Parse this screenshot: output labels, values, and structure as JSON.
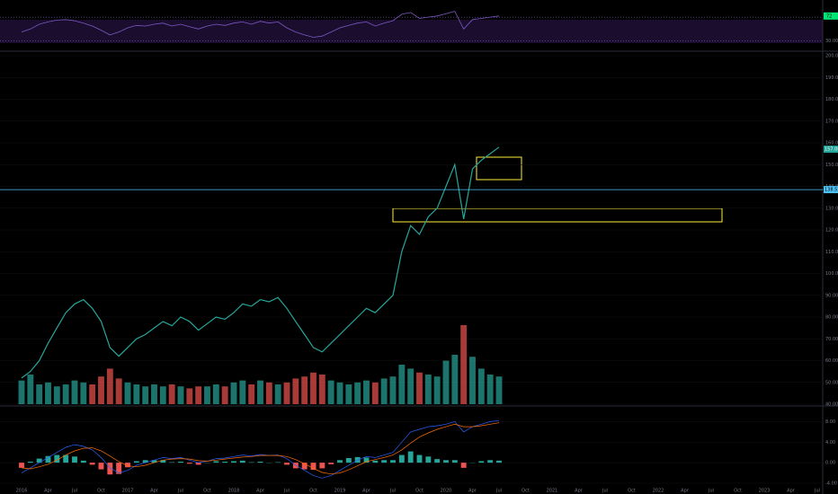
{
  "chart_data": [
    {
      "type": "line",
      "categories": [
        "2016",
        null,
        null,
        "Apr",
        null,
        null,
        "Jul",
        null,
        null,
        "Oct",
        null,
        null,
        "2017",
        null,
        null,
        "Apr",
        null,
        null,
        "Jul",
        null,
        null,
        "Oct",
        null,
        null,
        "2018",
        null,
        null,
        "Apr",
        null,
        null,
        "Jul",
        null,
        null,
        "Oct",
        null,
        null,
        "2019",
        null,
        null,
        "Apr",
        null,
        null,
        "Jul",
        null,
        null,
        "Oct",
        null,
        null,
        "2020",
        null,
        null,
        "Apr",
        null,
        null,
        "Jul",
        null,
        null,
        "Oct",
        null,
        null,
        "2021",
        null,
        null,
        "Apr",
        null,
        null,
        "Jul",
        null,
        null,
        "Oct",
        null,
        null,
        "2022",
        null,
        null,
        "Apr",
        null,
        null,
        "Jul",
        null,
        null,
        "Oct",
        null,
        null,
        "2023",
        null,
        null,
        "Apr",
        null,
        null,
        "Jul"
      ],
      "values": [
        52,
        55,
        60,
        68,
        75,
        82,
        86,
        88,
        84,
        78,
        66,
        62,
        66,
        70,
        72,
        75,
        78,
        76,
        80,
        78,
        74,
        77,
        80,
        79,
        82,
        86,
        85,
        88,
        87,
        89,
        84,
        78,
        72,
        66,
        64,
        68,
        72,
        76,
        80,
        84,
        82,
        86,
        90,
        110,
        122,
        118,
        126,
        130,
        140,
        150,
        125,
        148,
        152,
        155,
        158,
        null,
        null,
        null,
        null,
        null,
        null,
        null,
        null,
        null,
        null,
        null,
        null,
        null,
        null,
        null,
        null,
        null,
        null,
        null,
        null,
        null,
        null,
        null,
        null,
        null,
        null,
        null,
        null,
        null,
        null,
        null,
        null,
        null,
        null,
        null,
        null
      ],
      "color": "#26a69a",
      "up_color": "#26a69a",
      "down_color": "#ef5350",
      "ylim": [
        40,
        200
      ],
      "yticks": [
        {
          "value": 40,
          "label": "40.00"
        },
        {
          "value": 50,
          "label": "50.00"
        },
        {
          "value": 60,
          "label": "60.00"
        },
        {
          "value": 70,
          "label": "70.00"
        },
        {
          "value": 80,
          "label": "80.00"
        },
        {
          "value": 90,
          "label": "90.00"
        },
        {
          "value": 100,
          "label": "100.00"
        },
        {
          "value": 110,
          "label": "110.00"
        },
        {
          "value": 120,
          "label": "120.00"
        },
        {
          "value": 130,
          "label": "130.00"
        },
        {
          "value": 140,
          "label": "140.00"
        },
        {
          "value": 150,
          "label": "150.00"
        },
        {
          "value": 160,
          "label": "160.00"
        },
        {
          "value": 170,
          "label": "170.00"
        },
        {
          "value": 180,
          "label": "180.00"
        },
        {
          "value": 190,
          "label": "190.00"
        },
        {
          "value": 200,
          "label": "200.00"
        }
      ],
      "last_price": 157.06,
      "level": 138.52
    },
    {
      "type": "bar",
      "values": [
        12,
        15,
        10,
        11,
        9,
        10,
        12,
        11,
        10,
        14,
        18,
        13,
        11,
        10,
        9,
        10,
        9,
        10,
        9,
        8,
        9,
        9,
        10,
        9,
        11,
        12,
        10,
        12,
        11,
        10,
        11,
        13,
        14,
        16,
        15,
        12,
        11,
        10,
        11,
        12,
        11,
        13,
        14,
        20,
        18,
        16,
        15,
        14,
        22,
        25,
        40,
        24,
        18,
        15,
        14,
        null,
        null,
        null,
        null,
        null,
        null,
        null,
        null,
        null,
        null,
        null,
        null,
        null,
        null,
        null,
        null,
        null,
        null,
        null,
        null,
        null,
        null,
        null,
        null,
        null,
        null,
        null,
        null,
        null,
        null,
        null,
        null,
        null,
        null,
        null,
        null
      ]
    },
    {
      "type": "line",
      "values": [
        45,
        50,
        58,
        62,
        65,
        66,
        64,
        60,
        55,
        48,
        40,
        45,
        52,
        56,
        55,
        58,
        60,
        55,
        58,
        54,
        50,
        55,
        58,
        56,
        60,
        62,
        58,
        63,
        60,
        62,
        52,
        45,
        40,
        36,
        38,
        45,
        52,
        56,
        60,
        62,
        55,
        60,
        64,
        75,
        78,
        68,
        70,
        72,
        76,
        80,
        50,
        66,
        68,
        70,
        72,
        null,
        null,
        null,
        null,
        null,
        null,
        null,
        null,
        null,
        null,
        null,
        null,
        null,
        null,
        null,
        null,
        null,
        null,
        null,
        null,
        null,
        null,
        null,
        null,
        null,
        null,
        null,
        null,
        null,
        null,
        null,
        null,
        null,
        null,
        null,
        null
      ],
      "color": "#7e57c2",
      "ylim": [
        20,
        90
      ],
      "yticks": [
        {
          "value": 30,
          "label": "30.00"
        },
        {
          "value": 70,
          "label": "70.00"
        }
      ]
    },
    {
      "type": "macd",
      "macd": [
        -2,
        -1,
        0,
        1,
        2,
        3,
        3.5,
        3.2,
        2.5,
        1,
        -1,
        -2,
        -1.5,
        -0.5,
        0,
        0.5,
        1,
        0.8,
        1,
        0.5,
        0,
        0.3,
        0.8,
        0.9,
        1.2,
        1.5,
        1.3,
        1.6,
        1.4,
        1.5,
        0.8,
        -0.5,
        -1.5,
        -2.5,
        -3,
        -2.5,
        -1.5,
        -0.5,
        0.5,
        1.2,
        1,
        1.5,
        2,
        4,
        6,
        6.5,
        7,
        7.2,
        7.5,
        8,
        6,
        7,
        7.5,
        8,
        8.2,
        null,
        null,
        null,
        null,
        null,
        null,
        null,
        null,
        null,
        null,
        null,
        null,
        null,
        null,
        null,
        null,
        null,
        null,
        null,
        null,
        null,
        null,
        null,
        null,
        null,
        null,
        null,
        null,
        null,
        null,
        null,
        null,
        null,
        null,
        null,
        null
      ],
      "signal": [
        -1,
        -1.2,
        -0.8,
        -0.3,
        0.5,
        1.5,
        2.3,
        2.8,
        2.9,
        2.3,
        1.3,
        0.2,
        -0.6,
        -0.8,
        -0.5,
        0,
        0.5,
        0.7,
        0.8,
        0.7,
        0.4,
        0.3,
        0.5,
        0.7,
        0.9,
        1.1,
        1.2,
        1.4,
        1.4,
        1.4,
        1.2,
        0.6,
        -0.2,
        -1.1,
        -1.9,
        -2.2,
        -2,
        -1.4,
        -0.6,
        0.2,
        0.6,
        1,
        1.5,
        2.5,
        3.8,
        5,
        5.8,
        6.5,
        7,
        7.5,
        7,
        7,
        7.2,
        7.5,
        7.8,
        null,
        null,
        null,
        null,
        null,
        null,
        null,
        null,
        null,
        null,
        null,
        null,
        null,
        null,
        null,
        null,
        null,
        null,
        null,
        null,
        null,
        null,
        null,
        null,
        null,
        null,
        null,
        null,
        null,
        null,
        null,
        null,
        null,
        null,
        null,
        null
      ],
      "histogram": [
        -1,
        0.2,
        0.8,
        1.3,
        1.5,
        1.5,
        1.2,
        0.4,
        -0.4,
        -1.3,
        -2.3,
        -2.2,
        -0.9,
        0.3,
        0.5,
        0.5,
        0.5,
        0.1,
        0.2,
        -0.2,
        -0.4,
        0,
        0.3,
        0.2,
        0.3,
        0.4,
        0.1,
        0.2,
        0,
        0.1,
        -0.4,
        -1.1,
        -1.3,
        -1.4,
        -1.1,
        -0.3,
        0.5,
        0.9,
        1.1,
        1,
        0.4,
        0.5,
        0.5,
        1.5,
        2.2,
        1.5,
        1.2,
        0.7,
        0.5,
        0.5,
        -1,
        0,
        0.3,
        0.5,
        0.4,
        null,
        null,
        null,
        null,
        null,
        null,
        null,
        null,
        null,
        null,
        null,
        null,
        null,
        null,
        null,
        null,
        null,
        null,
        null,
        null,
        null,
        null,
        null,
        null,
        null,
        null,
        null,
        null,
        null,
        null,
        null,
        null,
        null,
        null,
        null,
        null
      ],
      "macd_color": "#2962ff",
      "signal_color": "#ff6d00",
      "ylim": [
        -4,
        10
      ],
      "yticks": [
        {
          "value": -4,
          "label": "-4.00"
        },
        {
          "value": 0,
          "label": "0.00"
        },
        {
          "value": 4,
          "label": "4.00"
        },
        {
          "value": 8,
          "label": "8.00"
        }
      ]
    }
  ]
}
